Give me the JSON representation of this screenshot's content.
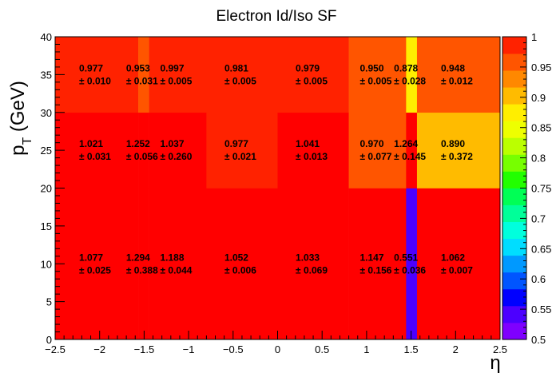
{
  "chart_data": {
    "type": "heatmap",
    "title": "Electron Id/Iso SF",
    "xlabel": "η",
    "ylabel": "p_T (GeV)",
    "ylabel_main": "p",
    "ylabel_sub": "T",
    "ylabel_unit": " (GeV)",
    "xlim": [
      -2.5,
      2.5
    ],
    "ylim": [
      0,
      40
    ],
    "zlim": [
      0.5,
      1.0
    ],
    "x_ticks": [
      -2.5,
      -2,
      -1.5,
      -1,
      -0.5,
      0,
      0.5,
      1,
      1.5,
      2,
      2.5
    ],
    "x_tick_labels": [
      "−2.5",
      "−2",
      "−1.5",
      "−1",
      "−0.5",
      "0",
      "0.5",
      "1",
      "1.5",
      "2",
      "2.5"
    ],
    "y_ticks": [
      0,
      5,
      10,
      15,
      20,
      25,
      30,
      35,
      40
    ],
    "y_tick_labels": [
      "0",
      "5",
      "10",
      "15",
      "20",
      "25",
      "30",
      "35",
      "40"
    ],
    "z_ticks": [
      0.5,
      0.55,
      0.6,
      0.65,
      0.7,
      0.75,
      0.8,
      0.85,
      0.9,
      0.95,
      1.0
    ],
    "z_tick_labels": [
      "0.5",
      "0.55",
      "0.6",
      "0.65",
      "0.7",
      "0.75",
      "0.8",
      "0.85",
      "0.9",
      "0.95",
      "1"
    ],
    "x_edges": [
      -2.5,
      -1.566,
      -1.444,
      -0.8,
      0.0,
      0.8,
      1.444,
      1.566,
      2.5
    ],
    "y_edges": [
      0,
      20,
      30,
      40
    ],
    "cells": [
      {
        "x_bin": 0,
        "y_bin": 0,
        "value": 1.077,
        "error": 0.025,
        "value_label": "1.077",
        "error_label": "± 0.025"
      },
      {
        "x_bin": 1,
        "y_bin": 0,
        "value": 1.294,
        "error": 0.388,
        "value_label": "1.294",
        "error_label": "± 0.388"
      },
      {
        "x_bin": 2,
        "y_bin": 0,
        "value": 1.188,
        "error": 0.044,
        "value_label": "1.188",
        "error_label": "± 0.044"
      },
      {
        "x_bin": 3,
        "y_bin": 0,
        "value": 1.052,
        "error": 0.006,
        "value_label": "1.052",
        "error_label": "± 0.006"
      },
      {
        "x_bin": 4,
        "y_bin": 0,
        "value": 1.033,
        "error": 0.069,
        "value_label": "1.033",
        "error_label": "± 0.069"
      },
      {
        "x_bin": 5,
        "y_bin": 0,
        "value": 1.147,
        "error": 0.156,
        "value_label": "1.147",
        "error_label": "± 0.156"
      },
      {
        "x_bin": 6,
        "y_bin": 0,
        "value": 0.551,
        "error": 0.036,
        "value_label": "0.551",
        "error_label": "± 0.036"
      },
      {
        "x_bin": 7,
        "y_bin": 0,
        "value": 1.062,
        "error": 0.007,
        "value_label": "1.062",
        "error_label": "± 0.007"
      },
      {
        "x_bin": 0,
        "y_bin": 1,
        "value": 1.021,
        "error": 0.031,
        "value_label": "1.021",
        "error_label": "± 0.031"
      },
      {
        "x_bin": 1,
        "y_bin": 1,
        "value": 1.252,
        "error": 0.056,
        "value_label": "1.252",
        "error_label": "± 0.056"
      },
      {
        "x_bin": 2,
        "y_bin": 1,
        "value": 1.037,
        "error": 0.26,
        "value_label": "1.037",
        "error_label": "± 0.260"
      },
      {
        "x_bin": 3,
        "y_bin": 1,
        "value": 0.977,
        "error": 0.021,
        "value_label": "0.977",
        "error_label": "± 0.021"
      },
      {
        "x_bin": 4,
        "y_bin": 1,
        "value": 1.041,
        "error": 0.013,
        "value_label": "1.041",
        "error_label": "± 0.013"
      },
      {
        "x_bin": 5,
        "y_bin": 1,
        "value": 0.97,
        "error": 0.077,
        "value_label": "0.970",
        "error_label": "± 0.077"
      },
      {
        "x_bin": 6,
        "y_bin": 1,
        "value": 1.264,
        "error": 0.145,
        "value_label": "1.264",
        "error_label": "± 0.145"
      },
      {
        "x_bin": 7,
        "y_bin": 1,
        "value": 0.89,
        "error": 0.372,
        "value_label": "0.890",
        "error_label": "± 0.372"
      },
      {
        "x_bin": 0,
        "y_bin": 2,
        "value": 0.977,
        "error": 0.01,
        "value_label": "0.977",
        "error_label": "± 0.010"
      },
      {
        "x_bin": 1,
        "y_bin": 2,
        "value": 0.953,
        "error": 0.031,
        "value_label": "0.953",
        "error_label": "± 0.031"
      },
      {
        "x_bin": 2,
        "y_bin": 2,
        "value": 0.997,
        "error": 0.005,
        "value_label": "0.997",
        "error_label": "± 0.005"
      },
      {
        "x_bin": 3,
        "y_bin": 2,
        "value": 0.981,
        "error": 0.005,
        "value_label": "0.981",
        "error_label": "± 0.005"
      },
      {
        "x_bin": 4,
        "y_bin": 2,
        "value": 0.979,
        "error": 0.005,
        "value_label": "0.979",
        "error_label": "± 0.005"
      },
      {
        "x_bin": 5,
        "y_bin": 2,
        "value": 0.95,
        "error": 0.005,
        "value_label": "0.950",
        "error_label": "± 0.005"
      },
      {
        "x_bin": 6,
        "y_bin": 2,
        "value": 0.878,
        "error": 0.028,
        "value_label": "0.878",
        "error_label": "± 0.028"
      },
      {
        "x_bin": 7,
        "y_bin": 2,
        "value": 0.948,
        "error": 0.012,
        "value_label": "0.948",
        "error_label": "± 0.012"
      }
    ],
    "palette": [
      "#7F00FF",
      "#4C00FF",
      "#0000FF",
      "#0055FF",
      "#0099FF",
      "#00DDFF",
      "#00FFDD",
      "#00FF99",
      "#00FF55",
      "#22FF00",
      "#77FF00",
      "#BBFF00",
      "#EEFF00",
      "#FFEE00",
      "#FFBB00",
      "#FF8800",
      "#FF5500",
      "#FF2200"
    ],
    "overflow_color": "#FF0000",
    "grid": false,
    "legend": "right"
  }
}
